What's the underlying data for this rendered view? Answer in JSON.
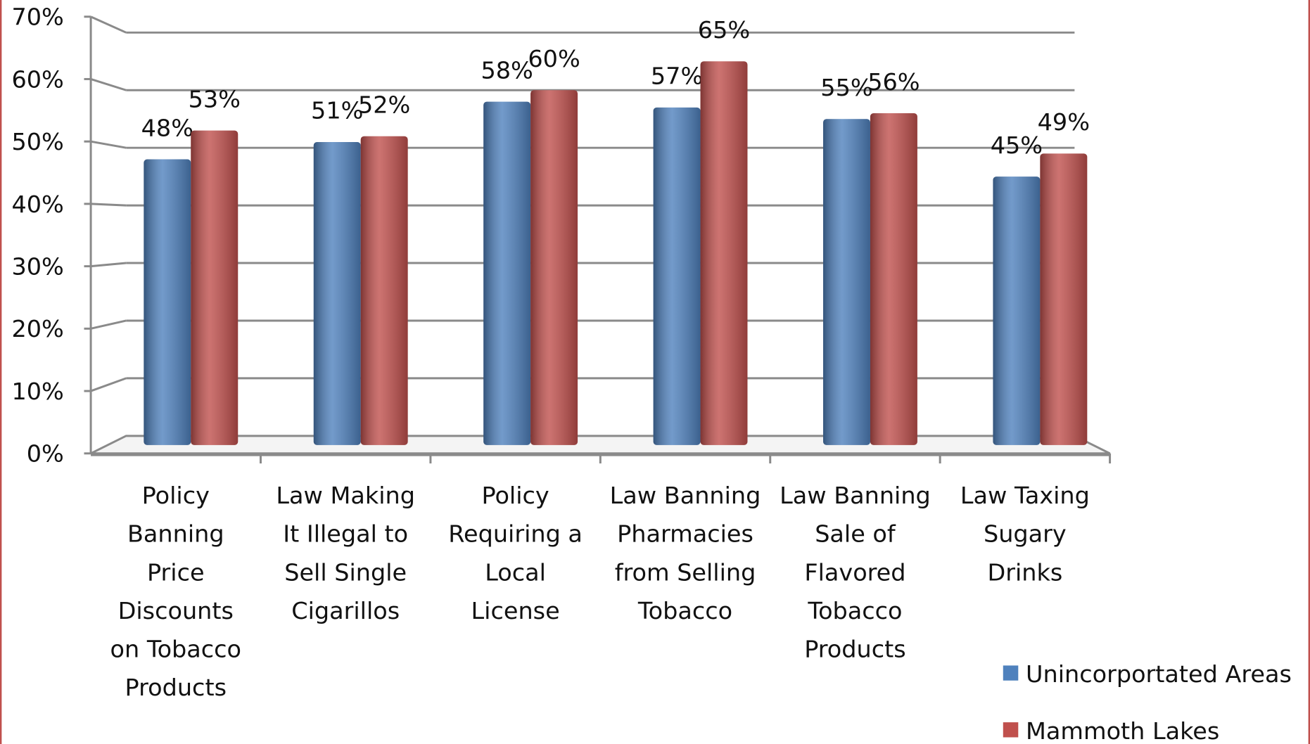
{
  "chart_data": {
    "type": "bar",
    "categories": [
      "Policy\nBanning\nPrice\nDiscounts\non Tobacco\nProducts",
      "Law Making\nIt Illegal to\nSell Single\nCigarillos",
      "Policy\nRequiring a\nLocal\nLicense",
      "Law Banning\nPharmacies\nfrom Selling\nTobacco",
      "Law Banning\nSale of\nFlavored\nTobacco\nProducts",
      "Law Taxing\nSugary\nDrinks"
    ],
    "series": [
      {
        "name": "Unincorportated Areas",
        "color": "#4f81bd",
        "values": [
          48,
          51,
          58,
          57,
          55,
          45
        ],
        "value_labels": [
          "48%",
          "51%",
          "58%",
          "57%",
          "55%",
          "45%"
        ]
      },
      {
        "name": "Mammoth Lakes",
        "color": "#c0504d",
        "values": [
          53,
          52,
          60,
          65,
          56,
          49
        ],
        "value_labels": [
          "53%",
          "52%",
          "60%",
          "65%",
          "56%",
          "49%"
        ]
      }
    ],
    "ylim": [
      0,
      70
    ],
    "yticks": [
      {
        "value": 0,
        "label": "0%"
      },
      {
        "value": 10,
        "label": "10%"
      },
      {
        "value": 20,
        "label": "20%"
      },
      {
        "value": 30,
        "label": "30%"
      },
      {
        "value": 40,
        "label": "40%"
      },
      {
        "value": 50,
        "label": "50%"
      },
      {
        "value": 60,
        "label": "60%"
      },
      {
        "value": 70,
        "label": "70%"
      }
    ],
    "grid": true,
    "legend": "bottom-right"
  }
}
